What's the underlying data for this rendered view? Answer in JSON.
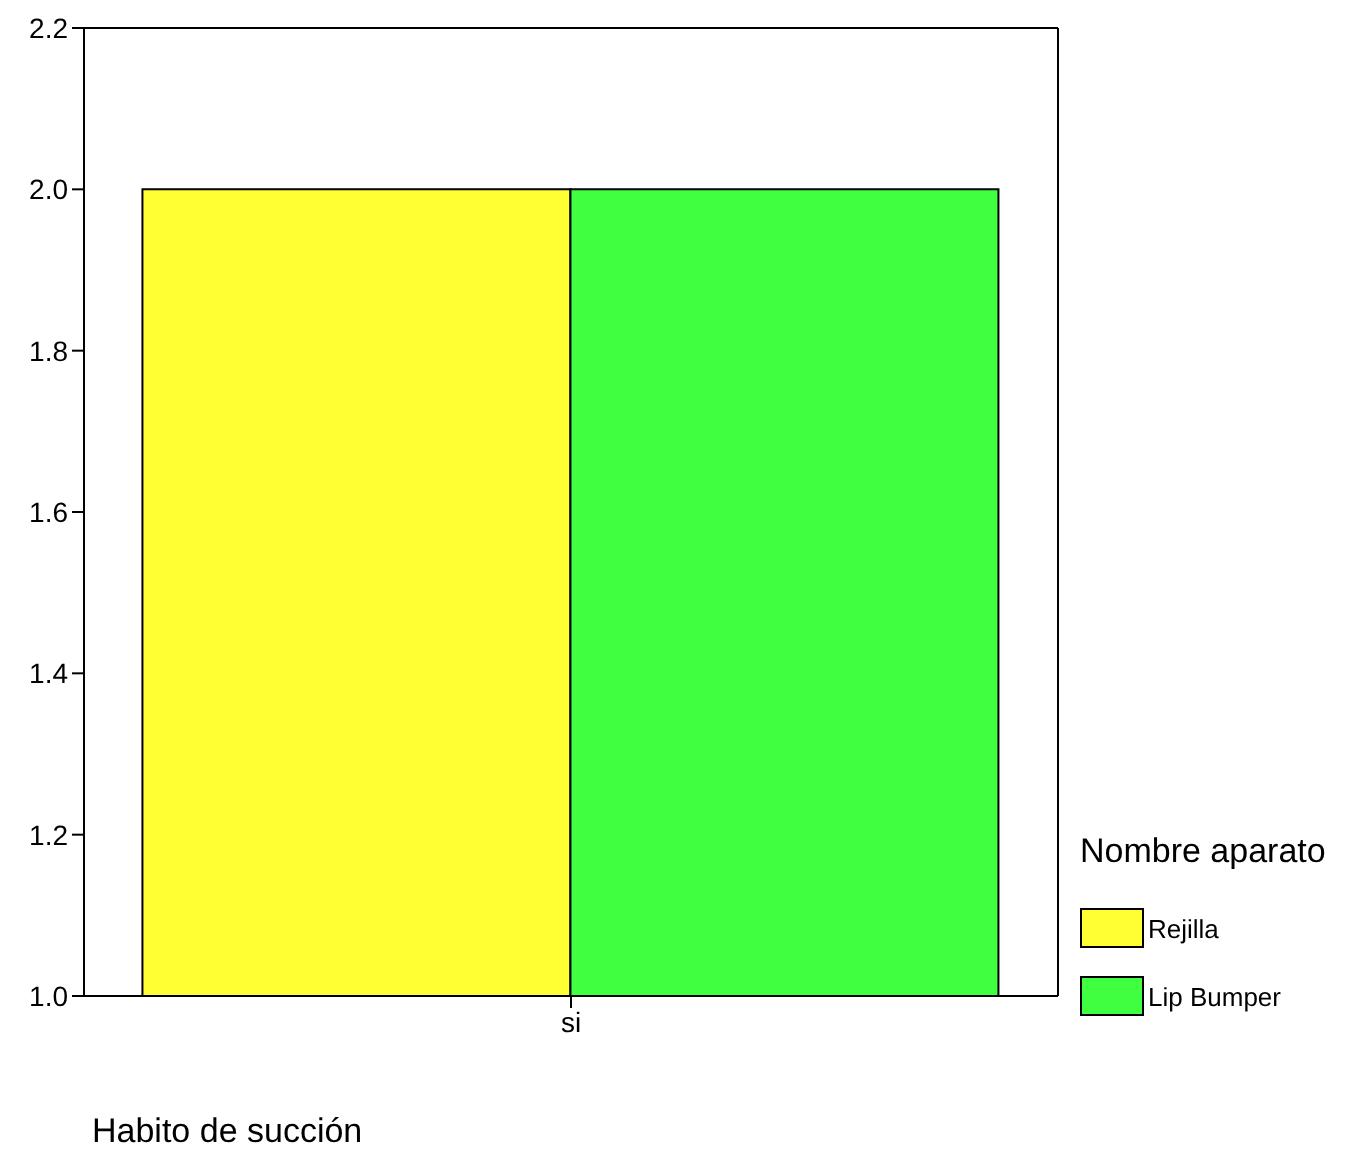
{
  "chart_data": {
    "type": "bar",
    "xlabel": "Habito de succión",
    "legend_title": "Nombre aparato",
    "categories": [
      "si"
    ],
    "series": [
      {
        "name": "Rejilla",
        "color": "#ffff33",
        "values": [
          2.0
        ]
      },
      {
        "name": "Lip Bumper",
        "color": "#40ff40",
        "values": [
          2.0
        ]
      }
    ],
    "ylim": [
      1,
      2.2
    ],
    "yticks": [
      {
        "value": 1,
        "label": "1.0"
      },
      1.2,
      1.4,
      1.6,
      1.8,
      {
        "value": 2,
        "label": "2.0"
      },
      2.2
    ],
    "legend": "right"
  }
}
